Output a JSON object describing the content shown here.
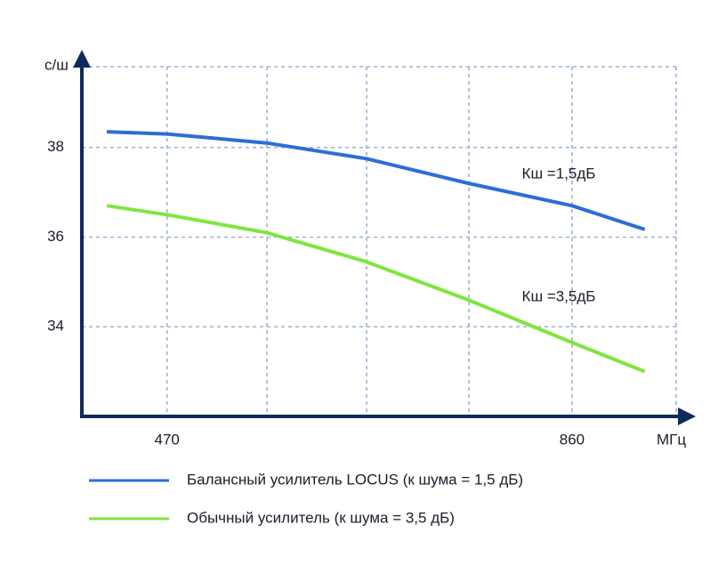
{
  "chart_data": {
    "type": "line",
    "y_label": "с/ш",
    "x_label": "МГц",
    "xlim": [
      388,
      950
    ],
    "xticks": [
      470,
      860
    ],
    "ylim": [
      32,
      40
    ],
    "yticks": [
      34,
      36,
      38
    ],
    "grid": true,
    "x": [
      412,
      470,
      566,
      662,
      760,
      860,
      930
    ],
    "series": [
      {
        "name": "Балансный усилитель LOCUS (к шума = 1,5 дБ)",
        "color": "#2b6ed8",
        "values": [
          38.35,
          38.3,
          38.1,
          37.75,
          37.2,
          36.7,
          36.17
        ]
      },
      {
        "name": "Обычный усилитель (к шума = 3,5 дБ)",
        "color": "#7ee63e",
        "values": [
          36.7,
          36.5,
          36.1,
          35.45,
          34.6,
          33.65,
          33.0
        ]
      }
    ],
    "annotations": [
      "Кш =1,5дБ",
      "Кш =3,5дБ"
    ]
  }
}
